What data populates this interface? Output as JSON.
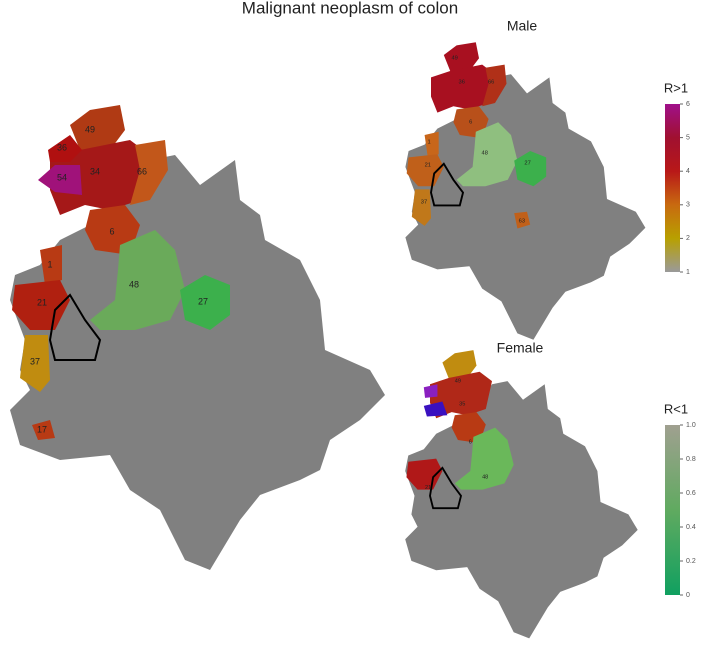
{
  "title": "Malignant neoplasm of colon",
  "maps": [
    {
      "labels": [
        "49",
        "34",
        "36",
        "66",
        "54",
        "6",
        "1",
        "48",
        "21",
        "27",
        "37",
        "17"
      ]
    },
    {
      "title": "Male",
      "labels": [
        "49",
        "36",
        "66",
        "6",
        "1",
        "21",
        "48",
        "27",
        "37",
        "63"
      ]
    },
    {
      "title": "Female",
      "labels": [
        "49",
        "35",
        "6",
        "21",
        "48"
      ]
    }
  ],
  "legends": [
    {
      "title": "R>1",
      "ticks": [
        1,
        2,
        3,
        4,
        5,
        6
      ]
    },
    {
      "title": "R<1",
      "ticks": [
        0,
        0.2,
        0.4,
        0.6,
        0.8,
        {
          "value": 1,
          "label": "1.0"
        }
      ]
    }
  ]
}
